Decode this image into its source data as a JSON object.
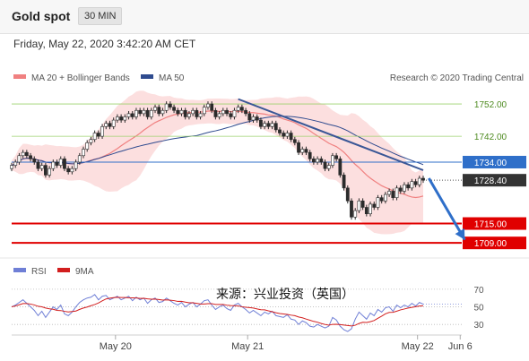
{
  "header": {
    "title": "Gold spot",
    "timeframe": "30 MIN"
  },
  "timestamp": "Friday, May 22, 2020 3:42:20 AM CET",
  "legend": {
    "ma20": "MA 20 + Bollinger Bands",
    "ma50": "MA 50"
  },
  "credit": "Research © 2020 Trading Central",
  "colors": {
    "ma20": "#f08080",
    "ma50": "#2f4b8f",
    "band": "#fbd9d9",
    "support": "#e00000",
    "resistance": "#9bd26c",
    "pivot": "#2f6fc9",
    "trend": "#3a5796",
    "rsi": "#6f7fd6",
    "rsi_ma": "#d21e1e"
  },
  "watermark": "来源：兴业投资（英国）",
  "rsi_legend": {
    "rsi": "RSI",
    "ma": "9MA"
  },
  "chart_data": [
    {
      "type": "candlestick",
      "ylim": [
        1706,
        1757
      ],
      "x_labels": [
        "May 20",
        "May 21",
        "May 22",
        "Jun 6"
      ],
      "x_label_positions": [
        27.5,
        62.5,
        107.5,
        118.8
      ],
      "price_levels": [
        {
          "value": 1752.0,
          "label": "1752.00",
          "kind": "resistance"
        },
        {
          "value": 1742.0,
          "label": "1742.00",
          "kind": "resistance"
        },
        {
          "value": 1734.0,
          "label": "1734.00",
          "kind": "pivot"
        },
        {
          "value": 1728.4,
          "label": "1728.40",
          "kind": "last"
        },
        {
          "value": 1715.0,
          "label": "1715.00",
          "kind": "support"
        },
        {
          "value": 1709.0,
          "label": "1709.00",
          "kind": "support"
        }
      ],
      "trendline": [
        [
          60,
          1753.5
        ],
        [
          109,
          1731.5
        ]
      ],
      "forecast_arrow": [
        [
          110.5,
          1729
        ],
        [
          120,
          1710
        ]
      ],
      "close": [
        1733,
        1734,
        1736,
        1737,
        1736,
        1735,
        1734,
        1732,
        1733,
        1730,
        1732,
        1734,
        1733,
        1735,
        1732,
        1731,
        1732,
        1734,
        1736,
        1738,
        1740,
        1741,
        1743,
        1742,
        1745,
        1746,
        1745,
        1747,
        1748,
        1747,
        1748,
        1749,
        1748,
        1750,
        1749,
        1750,
        1748,
        1750,
        1751,
        1749,
        1750,
        1752,
        1751,
        1750,
        1749,
        1750,
        1748,
        1749,
        1750,
        1748,
        1749,
        1751,
        1752,
        1750,
        1748,
        1749,
        1750,
        1749,
        1748,
        1750,
        1751,
        1750,
        1749,
        1747,
        1748,
        1747,
        1745,
        1746,
        1745,
        1746,
        1744,
        1743,
        1742,
        1743,
        1741,
        1740,
        1737,
        1738,
        1737,
        1735,
        1734,
        1735,
        1734,
        1732,
        1733,
        1736,
        1735,
        1730,
        1726,
        1722,
        1717,
        1719,
        1722,
        1720,
        1718,
        1721,
        1720,
        1723,
        1722,
        1724,
        1725,
        1723,
        1726,
        1725,
        1727,
        1726,
        1728,
        1727,
        1729,
        1728.4
      ],
      "open": [
        1732,
        1733,
        1734,
        1736,
        1737,
        1736,
        1735,
        1734,
        1732,
        1733,
        1730,
        1732,
        1734,
        1733,
        1735,
        1732,
        1731,
        1732,
        1734,
        1736,
        1738,
        1740,
        1741,
        1743,
        1742,
        1745,
        1746,
        1745,
        1747,
        1748,
        1747,
        1748,
        1749,
        1748,
        1750,
        1749,
        1750,
        1748,
        1750,
        1751,
        1749,
        1750,
        1752,
        1751,
        1750,
        1749,
        1750,
        1748,
        1749,
        1750,
        1748,
        1749,
        1751,
        1752,
        1750,
        1748,
        1749,
        1750,
        1749,
        1748,
        1750,
        1751,
        1750,
        1749,
        1747,
        1748,
        1747,
        1745,
        1746,
        1745,
        1746,
        1744,
        1743,
        1742,
        1743,
        1741,
        1740,
        1737,
        1738,
        1737,
        1735,
        1734,
        1735,
        1734,
        1732,
        1733,
        1736,
        1735,
        1730,
        1726,
        1722,
        1717,
        1719,
        1722,
        1720,
        1718,
        1721,
        1720,
        1723,
        1722,
        1724,
        1725,
        1723,
        1726,
        1725,
        1727,
        1726,
        1728,
        1727,
        1729
      ],
      "rsi": {
        "ylim": [
          20,
          75
        ],
        "levels": [
          70,
          50,
          30
        ],
        "values": [
          50,
          52,
          55,
          58,
          54,
          50,
          46,
          40,
          45,
          38,
          44,
          50,
          47,
          52,
          42,
          40,
          44,
          50,
          55,
          58,
          60,
          61,
          64,
          58,
          62,
          63,
          58,
          60,
          62,
          58,
          60,
          62,
          57,
          61,
          58,
          60,
          54,
          58,
          60,
          55,
          56,
          60,
          57,
          54,
          52,
          55,
          50,
          53,
          55,
          50,
          53,
          57,
          58,
          52,
          47,
          50,
          52,
          48,
          46,
          52,
          54,
          50,
          47,
          43,
          46,
          43,
          40,
          44,
          42,
          45,
          40,
          39,
          38,
          41,
          36,
          35,
          30,
          34,
          32,
          28,
          27,
          30,
          28,
          26,
          28,
          38,
          35,
          28,
          24,
          22,
          25,
          36,
          44,
          40,
          36,
          43,
          40,
          47,
          44,
          49,
          50,
          45,
          52,
          49,
          52,
          50,
          54,
          51,
          55,
          53
        ]
      }
    }
  ]
}
